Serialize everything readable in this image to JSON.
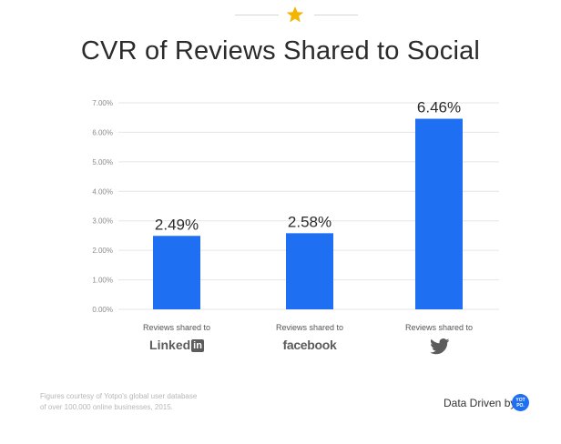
{
  "header": {
    "title": "CVR of Reviews Shared to Social"
  },
  "chart_data": {
    "type": "bar",
    "title": "CVR of Reviews Shared to Social",
    "categories": [
      "Reviews shared to LinkedIn",
      "Reviews shared to facebook",
      "Reviews shared to Twitter"
    ],
    "category_prefix": "Reviews shared to",
    "values": [
      2.49,
      2.58,
      6.46
    ],
    "value_labels": [
      "2.49%",
      "2.58%",
      "6.46%"
    ],
    "ylim": [
      0,
      7
    ],
    "yticks": [
      0,
      1,
      2,
      3,
      4,
      5,
      6,
      7
    ],
    "ytick_labels": [
      "0.00%",
      "1.00%",
      "2.00%",
      "3.00%",
      "4.00%",
      "5.00%",
      "6.00%",
      "7.00%"
    ],
    "xlabel": "",
    "ylabel": "",
    "grid": true,
    "legend": "none",
    "bar_color": "#1f6ff2"
  },
  "brands": {
    "linkedin_text": "Linked",
    "linkedin_box": "in",
    "facebook": "facebook",
    "twitter_icon": "twitter-bird-icon"
  },
  "footer": {
    "note_line1": "Figures courtesy of Yotpo's global user database",
    "note_line2": "of over 100,000 online businesses, 2015.",
    "credit": "Data Driven by",
    "logo_text": "YOT PO."
  },
  "colors": {
    "accent_star": "#f5b400",
    "bar": "#1f6ff2",
    "grid": "#e6e6e6"
  }
}
